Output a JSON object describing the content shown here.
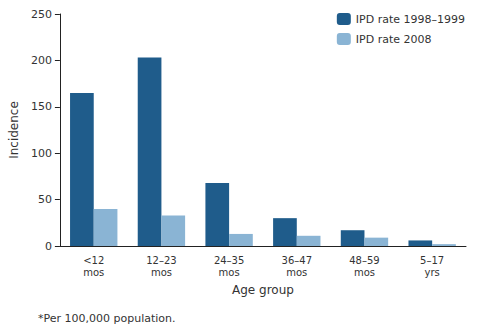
{
  "chart_data": {
    "type": "bar",
    "xlabel": "Age group",
    "ylabel": "Incidence",
    "categories": [
      "<12\nmos",
      "12–23\nmos",
      "24–35\nmos",
      "36–47\nmos",
      "48–59\nmos",
      "5–17\nyrs"
    ],
    "series": [
      {
        "name": "IPD rate 1998–1999",
        "color": "#1f5c8b",
        "values": [
          165,
          203,
          68,
          30,
          17,
          6
        ]
      },
      {
        "name": "IPD rate 2008",
        "color": "#8ab4d4",
        "values": [
          40,
          33,
          13,
          11,
          9,
          2
        ]
      }
    ],
    "ylim": [
      0,
      250
    ],
    "yticks": [
      0,
      50,
      100,
      150,
      200,
      250
    ],
    "grid": false,
    "legend": "upper right",
    "annotations": [
      "*Per 100,000 population."
    ]
  }
}
